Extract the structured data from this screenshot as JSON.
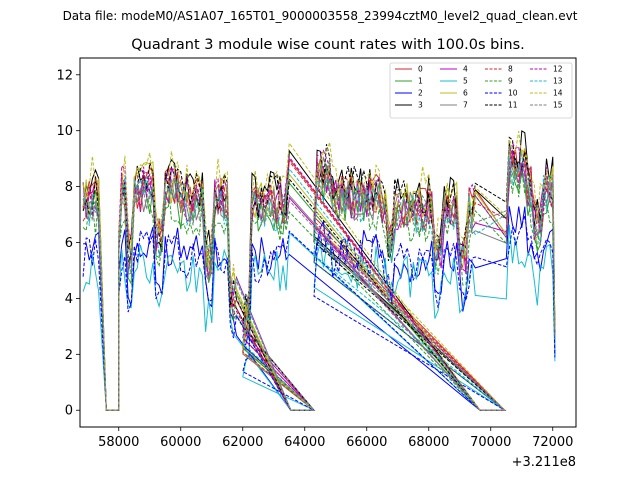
{
  "chart_data": {
    "type": "line",
    "suptitle": "Data file: modeM0/AS1A07_165T01_9000003558_23994cztM0_level2_quad_clean.evt",
    "title": "Quadrant 3 module wise count rates with 100.0s bins.",
    "xlabel": "",
    "ylabel": "",
    "x_offset_label": "+3.211e8",
    "xlim": [
      56750,
      72750
    ],
    "ylim": [
      -0.6,
      12.6
    ],
    "xticks": [
      58000,
      60000,
      62000,
      64000,
      66000,
      68000,
      70000,
      72000
    ],
    "xtick_labels": [
      "58000",
      "60000",
      "62000",
      "64000",
      "66000",
      "68000",
      "70000",
      "72000"
    ],
    "yticks": [
      0,
      2,
      4,
      6,
      8,
      10,
      12
    ],
    "ytick_labels": [
      "0",
      "2",
      "4",
      "6",
      "8",
      "10",
      "12"
    ],
    "grid": false,
    "legend_position": "top-right",
    "segments": [
      {
        "start": 56850,
        "end": 57400
      },
      {
        "start": 58000,
        "end": 61850
      },
      {
        "start": 62000,
        "end": 63500
      },
      {
        "start": 64300,
        "end": 69550
      },
      {
        "start": 70500,
        "end": 72050
      }
    ],
    "gap_ranges": [
      [
        57600,
        58000
      ],
      [
        63550,
        64300
      ],
      [
        69650,
        70450
      ]
    ],
    "series": [
      {
        "name": "0",
        "color": "#d62728",
        "dash": "solid",
        "level": 7.6
      },
      {
        "name": "1",
        "color": "#2ca02c",
        "dash": "solid",
        "level": 7.2
      },
      {
        "name": "2",
        "color": "#0000ff",
        "dash": "solid",
        "level": 5.6
      },
      {
        "name": "3",
        "color": "#000000",
        "dash": "solid",
        "level": 7.9
      },
      {
        "name": "4",
        "color": "#bf00bf",
        "dash": "solid",
        "level": 7.5
      },
      {
        "name": "5",
        "color": "#17becf",
        "dash": "solid",
        "level": 5.0
      },
      {
        "name": "6",
        "color": "#bcbd22",
        "dash": "solid",
        "level": 7.7
      },
      {
        "name": "7",
        "color": "#7f7f7f",
        "dash": "solid",
        "level": 7.4
      },
      {
        "name": "8",
        "color": "#d62728",
        "dash": "dashed",
        "level": 7.5
      },
      {
        "name": "9",
        "color": "#2ca02c",
        "dash": "dashed",
        "level": 7.0
      },
      {
        "name": "10",
        "color": "#0000ff",
        "dash": "dashed",
        "level": 5.4
      },
      {
        "name": "11",
        "color": "#000000",
        "dash": "dashed",
        "level": 7.8
      },
      {
        "name": "12",
        "color": "#bf00bf",
        "dash": "dashed",
        "level": 7.6
      },
      {
        "name": "13",
        "color": "#17becf",
        "dash": "dashed",
        "level": 7.3
      },
      {
        "name": "14",
        "color": "#bcbd22",
        "dash": "dashed",
        "level": 8.3
      },
      {
        "name": "15",
        "color": "#7f7f7f",
        "dash": "dashed",
        "level": 7.4
      }
    ]
  }
}
